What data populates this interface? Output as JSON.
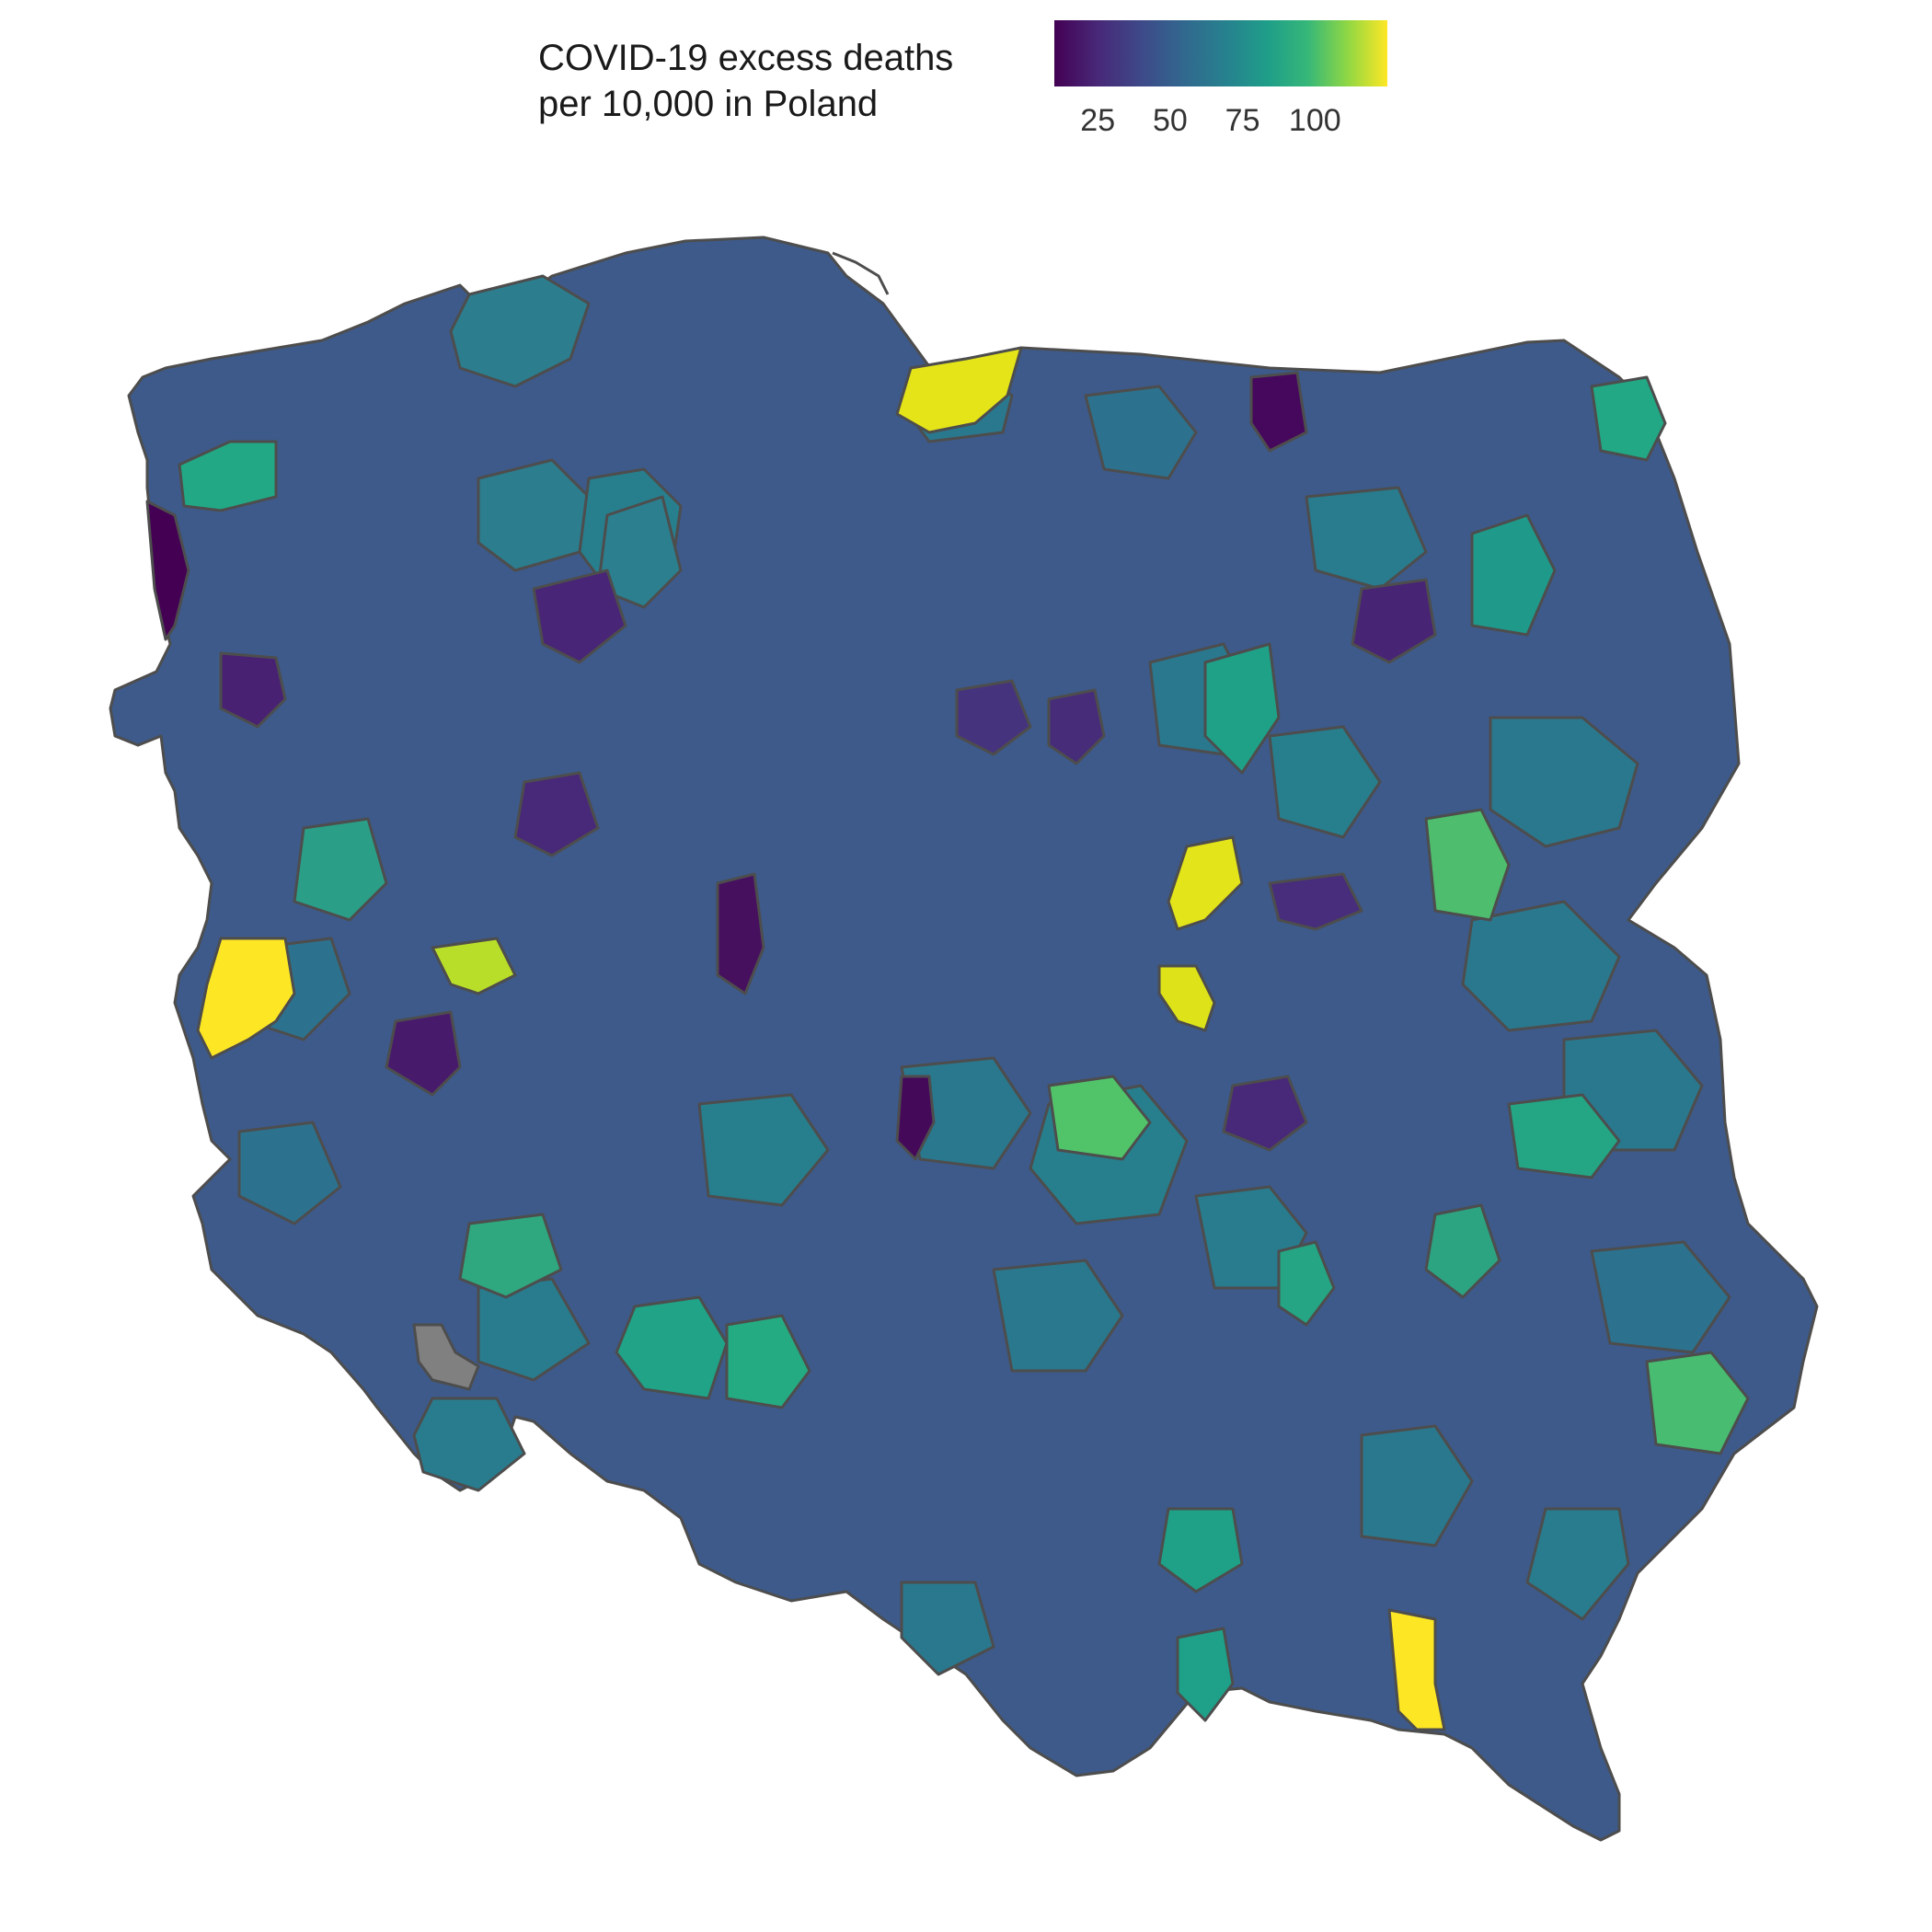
{
  "legend": {
    "title": "COVID-19 excess deaths\nper 10,000 in Poland",
    "ticks": [
      {
        "value": 25,
        "label": "25"
      },
      {
        "value": 50,
        "label": "50"
      },
      {
        "value": 75,
        "label": "75"
      },
      {
        "value": 100,
        "label": "100"
      }
    ],
    "range": [
      10,
      125
    ],
    "colors": [
      "#440154",
      "#3b528b",
      "#21918c",
      "#5ec962",
      "#fde725"
    ]
  },
  "map": {
    "missing_color": "#808080",
    "border_color": "#4d4d4d"
  }
}
